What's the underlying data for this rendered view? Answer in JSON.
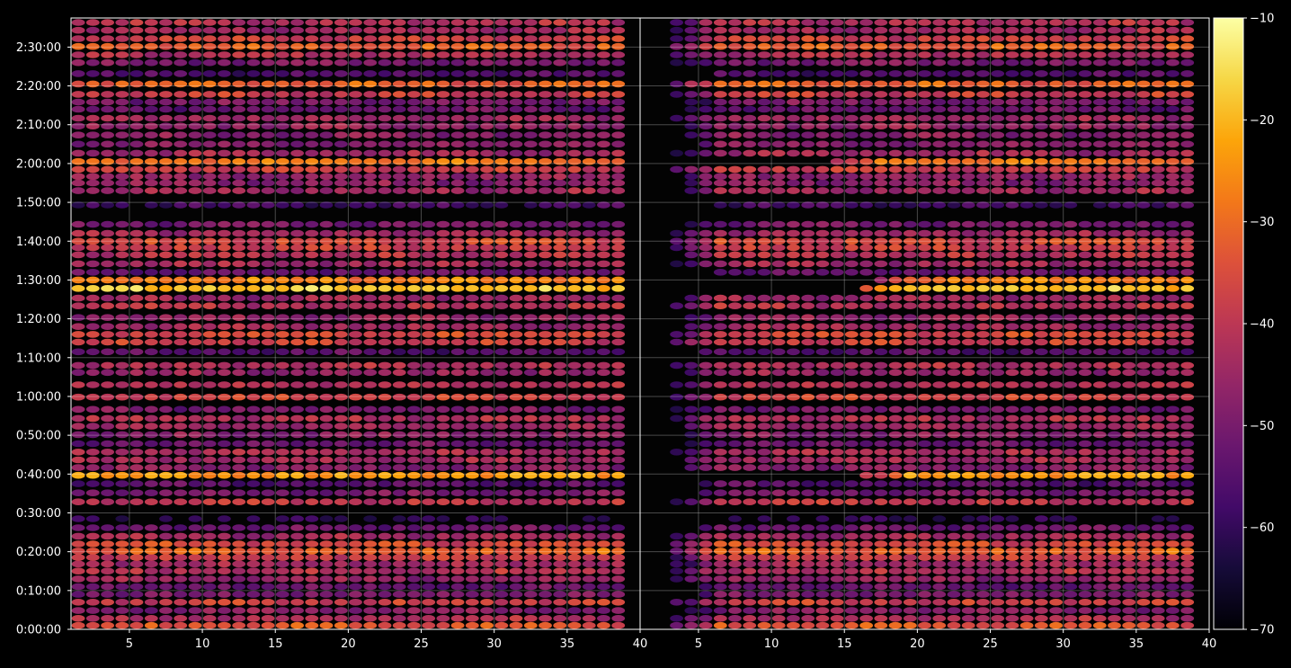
{
  "chart_data": {
    "type": "heatmap",
    "title": "",
    "xlabel": "",
    "ylabel": "",
    "panels": [
      {
        "name": "",
        "xlim": [
          1,
          40
        ],
        "xticks": [
          5,
          10,
          15,
          20,
          25,
          30,
          35,
          40
        ],
        "onset_scale": 0
      },
      {
        "name": "",
        "xlim": [
          1,
          40
        ],
        "xticks": [
          5,
          10,
          15,
          20,
          25,
          30,
          35,
          40
        ],
        "onset_scale": 1
      }
    ],
    "ylim_seconds": [
      0,
      9450
    ],
    "y_ticks": [
      {
        "seconds": 0,
        "label": "0:00:00"
      },
      {
        "seconds": 600,
        "label": "0:10:00"
      },
      {
        "seconds": 1200,
        "label": "0:20:00"
      },
      {
        "seconds": 1800,
        "label": "0:30:00"
      },
      {
        "seconds": 2400,
        "label": "0:40:00"
      },
      {
        "seconds": 3000,
        "label": "0:50:00"
      },
      {
        "seconds": 3600,
        "label": "1:00:00"
      },
      {
        "seconds": 4200,
        "label": "1:10:00"
      },
      {
        "seconds": 4800,
        "label": "1:20:00"
      },
      {
        "seconds": 5400,
        "label": "1:30:00"
      },
      {
        "seconds": 6000,
        "label": "1:40:00"
      },
      {
        "seconds": 6600,
        "label": "1:50:00"
      },
      {
        "seconds": 7200,
        "label": "2:00:00"
      },
      {
        "seconds": 7800,
        "label": "2:10:00"
      },
      {
        "seconds": 8400,
        "label": "2:20:00"
      },
      {
        "seconds": 9000,
        "label": "2:30:00"
      }
    ],
    "colorbar": {
      "colormap": "inferno",
      "range": [
        -70,
        -10
      ],
      "ticks": [
        {
          "value": -10,
          "label": "−10"
        },
        {
          "value": -20,
          "label": "−20"
        },
        {
          "value": -30,
          "label": "−30"
        },
        {
          "value": -40,
          "label": "−40"
        },
        {
          "value": -50,
          "label": "−50"
        },
        {
          "value": -60,
          "label": "−60"
        },
        {
          "value": -70,
          "label": "−70"
        }
      ]
    },
    "time_bands": [
      {
        "t": 60,
        "level": -34
      },
      {
        "t": 170,
        "level": -42
      },
      {
        "t": 290,
        "level": -48
      },
      {
        "t": 420,
        "level": -38
      },
      {
        "t": 540,
        "level": -50
      },
      {
        "t": 660,
        "level": -52
      },
      {
        "t": 780,
        "level": -46
      },
      {
        "t": 900,
        "level": -41
      },
      {
        "t": 1010,
        "level": -44
      },
      {
        "t": 1110,
        "level": -38
      },
      {
        "t": 1210,
        "level": -31
      },
      {
        "t": 1320,
        "level": -36
      },
      {
        "t": 1440,
        "level": -44
      },
      {
        "t": 1570,
        "level": -52
      },
      {
        "t": 1710,
        "level": -62
      },
      {
        "t": 1970,
        "level": -40
      },
      {
        "t": 2110,
        "level": -50
      },
      {
        "t": 2250,
        "level": -55
      },
      {
        "t": 2380,
        "level": -24
      },
      {
        "t": 2500,
        "level": -48
      },
      {
        "t": 2620,
        "level": -44
      },
      {
        "t": 2740,
        "level": -43
      },
      {
        "t": 2870,
        "level": -52
      },
      {
        "t": 3010,
        "level": -48
      },
      {
        "t": 3140,
        "level": -45
      },
      {
        "t": 3260,
        "level": -42
      },
      {
        "t": 3400,
        "level": -50
      },
      {
        "t": 3590,
        "level": -37
      },
      {
        "t": 3780,
        "level": -42
      },
      {
        "t": 3970,
        "level": -46
      },
      {
        "t": 4080,
        "level": -42
      },
      {
        "t": 4290,
        "level": -55
      },
      {
        "t": 4440,
        "level": -38
      },
      {
        "t": 4560,
        "level": -36
      },
      {
        "t": 4680,
        "level": -44
      },
      {
        "t": 4820,
        "level": -46
      },
      {
        "t": 5000,
        "level": -41
      },
      {
        "t": 5120,
        "level": -45
      },
      {
        "t": 5270,
        "level": -18
      },
      {
        "t": 5400,
        "level": -27
      },
      {
        "t": 5520,
        "level": -52
      },
      {
        "t": 5650,
        "level": -44
      },
      {
        "t": 5790,
        "level": -41
      },
      {
        "t": 5900,
        "level": -38
      },
      {
        "t": 6000,
        "level": -36
      },
      {
        "t": 6120,
        "level": -44
      },
      {
        "t": 6260,
        "level": -50
      },
      {
        "t": 6560,
        "level": -58
      },
      {
        "t": 6780,
        "level": -44
      },
      {
        "t": 6900,
        "level": -47
      },
      {
        "t": 7000,
        "level": -46
      },
      {
        "t": 7110,
        "level": -38
      },
      {
        "t": 7230,
        "level": -29
      },
      {
        "t": 7360,
        "level": -44
      },
      {
        "t": 7500,
        "level": -48
      },
      {
        "t": 7640,
        "level": -48
      },
      {
        "t": 7780,
        "level": -46
      },
      {
        "t": 7900,
        "level": -44
      },
      {
        "t": 8040,
        "level": -52
      },
      {
        "t": 8150,
        "level": -50
      },
      {
        "t": 8270,
        "level": -38
      },
      {
        "t": 8430,
        "level": -32
      },
      {
        "t": 8590,
        "level": -56
      },
      {
        "t": 8760,
        "level": -50
      },
      {
        "t": 8880,
        "level": -42
      },
      {
        "t": 9010,
        "level": -32
      },
      {
        "t": 9130,
        "level": -38
      },
      {
        "t": 9260,
        "level": -44
      },
      {
        "t": 9380,
        "level": -42
      }
    ]
  }
}
